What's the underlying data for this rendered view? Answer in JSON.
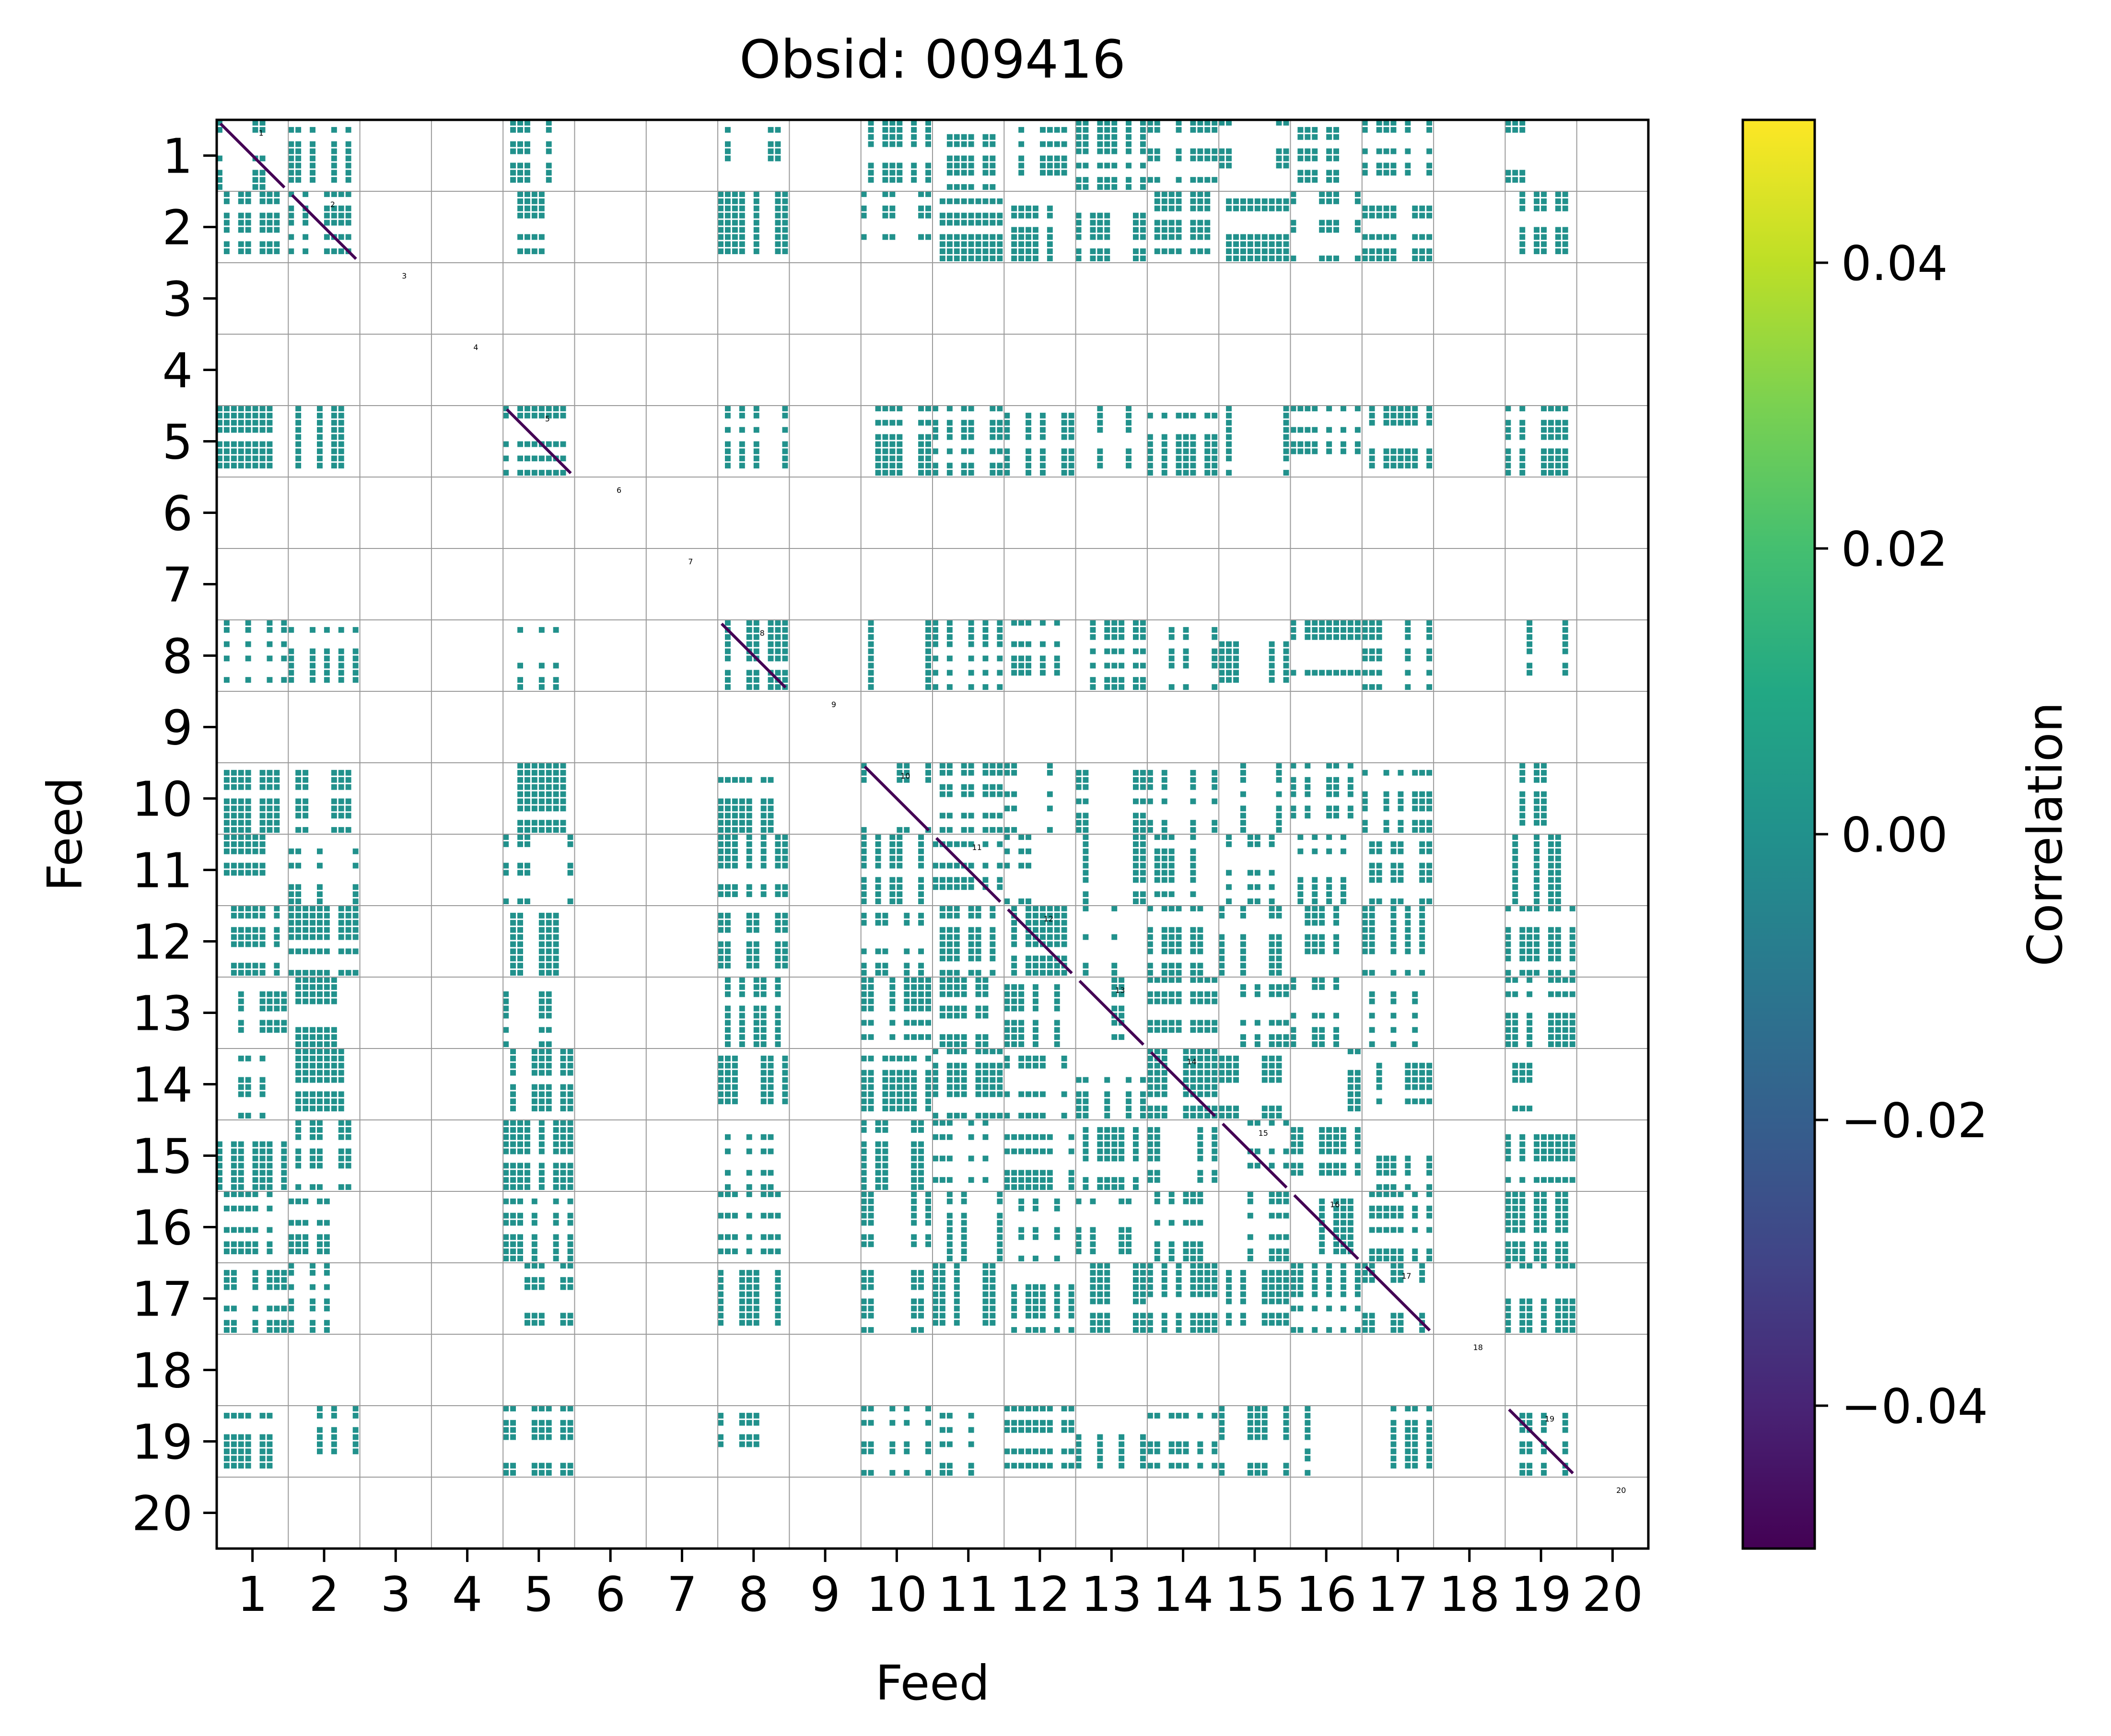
{
  "chart_data": {
    "type": "heatmap",
    "title": "Obsid: 009416",
    "xlabel": "Feed",
    "ylabel": "Feed",
    "x_tick_labels": [
      "1",
      "2",
      "3",
      "4",
      "5",
      "6",
      "7",
      "8",
      "9",
      "10",
      "11",
      "12",
      "13",
      "14",
      "15",
      "16",
      "17",
      "18",
      "19",
      "20"
    ],
    "y_tick_labels": [
      "1",
      "2",
      "3",
      "4",
      "5",
      "6",
      "7",
      "8",
      "9",
      "10",
      "11",
      "12",
      "13",
      "14",
      "15",
      "16",
      "17",
      "18",
      "19",
      "20"
    ],
    "grid": true,
    "colormap": "viridis",
    "colorbar": {
      "label": "Correlation",
      "range": [
        -0.05,
        0.05
      ],
      "ticks": [
        0.04,
        0.02,
        0.0,
        -0.02,
        -0.04
      ],
      "tick_labels": [
        "0.04",
        "0.02",
        "0.00",
        "−0.02",
        "−0.04"
      ]
    },
    "diagonal_labels": [
      "1",
      "2",
      "3",
      "4",
      "5",
      "6",
      "7",
      "8",
      "9",
      "10",
      "11",
      "12",
      "13",
      "14",
      "15",
      "16",
      "17",
      "18",
      "19",
      "20"
    ],
    "active_feeds": [
      1,
      2,
      5,
      8,
      10,
      11,
      12,
      13,
      14,
      15,
      16,
      17,
      19
    ],
    "typical_value": 0.0,
    "diagonal_value": -0.05,
    "colors": {
      "cell": "#21918c",
      "grid": "#9a9a9a",
      "diagonal": "#440154"
    }
  }
}
